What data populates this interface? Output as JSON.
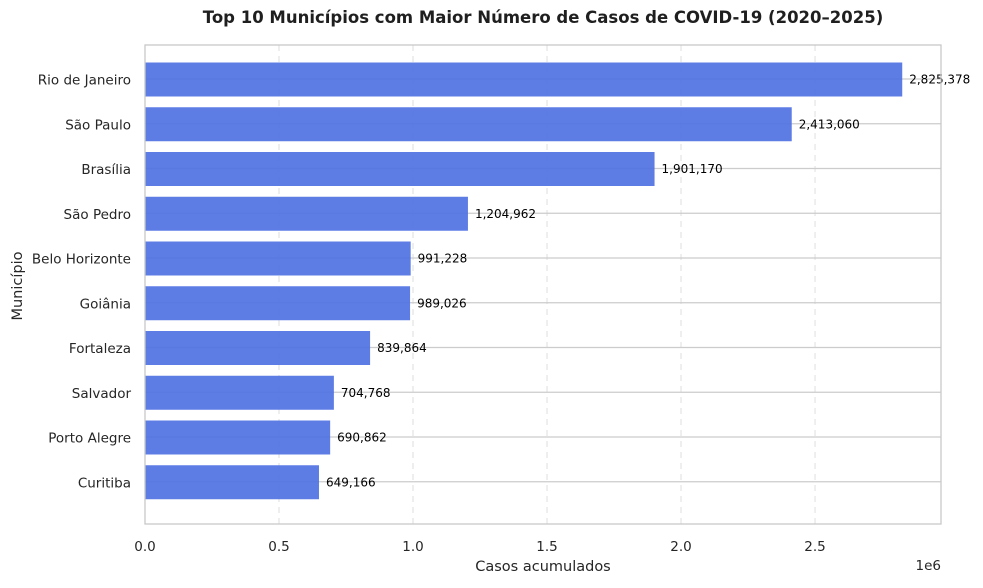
{
  "chart_data": {
    "type": "bar",
    "orientation": "horizontal",
    "title": "Top 10 Municípios com Maior Número de Casos de COVID-19 (2020–2025)",
    "xlabel": "Casos acumulados",
    "ylabel": "Município",
    "x_offset_label": "1e6",
    "categories": [
      "Rio de Janeiro",
      "São Paulo",
      "Brasília",
      "São Pedro",
      "Belo Horizonte",
      "Goiânia",
      "Fortaleza",
      "Salvador",
      "Porto Alegre",
      "Curitiba"
    ],
    "values": [
      2825378,
      2413060,
      1901170,
      1204962,
      991228,
      989026,
      839864,
      704768,
      690862,
      649166
    ],
    "value_labels": [
      "2,825,378",
      "2,413,060",
      "1,901,170",
      "1,204,962",
      "991,228",
      "989,026",
      "839,864",
      "704,768",
      "690,862",
      "649,166"
    ],
    "x_ticks": [
      "0.0",
      "0.5",
      "1.0",
      "1.5",
      "2.0",
      "2.5"
    ],
    "x_tick_values": [
      0,
      500000,
      1000000,
      1500000,
      2000000,
      2500000
    ],
    "xlim": [
      0,
      2970000
    ],
    "bar_color": "#4f72e3",
    "grid": true
  }
}
